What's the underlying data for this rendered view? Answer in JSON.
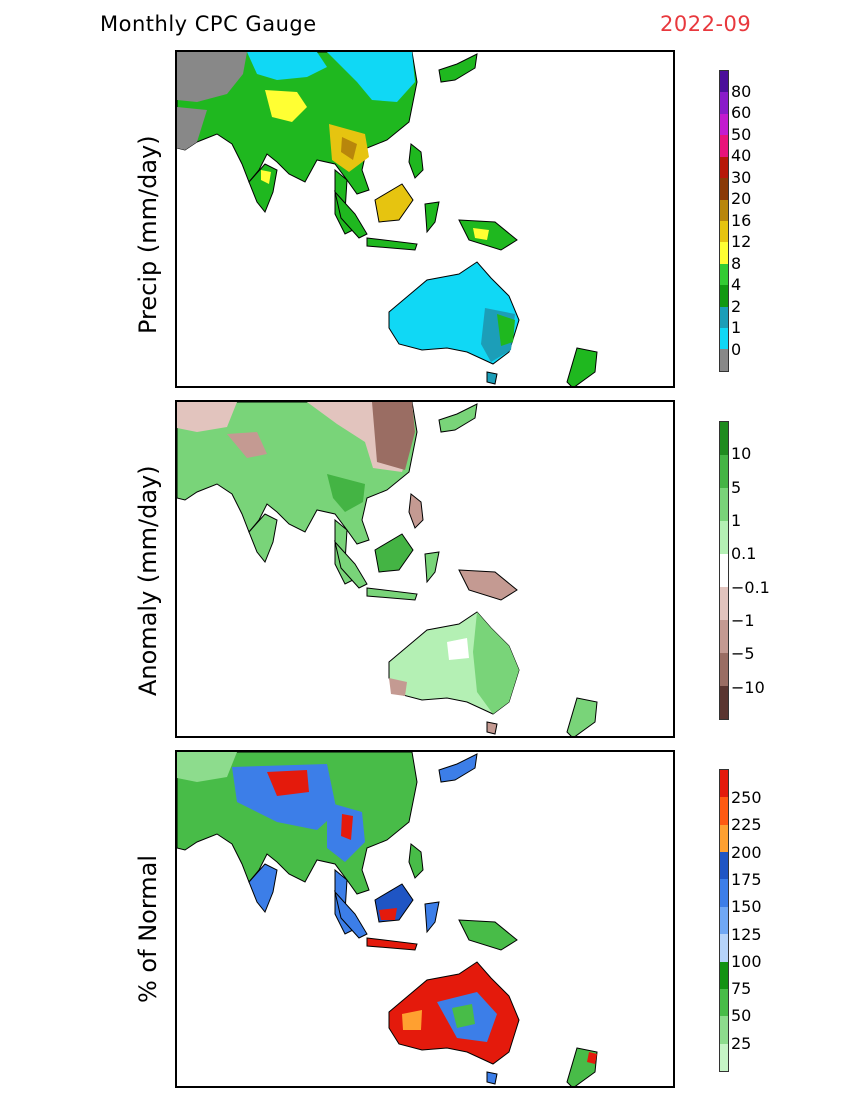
{
  "header": {
    "left": "Monthly CPC Gauge",
    "right": "2022-09"
  },
  "panels": [
    {
      "id": "precip",
      "ylabel": "Precip (mm/day)",
      "colorbar": {
        "labels": [
          "80",
          "60",
          "50",
          "40",
          "30",
          "20",
          "16",
          "12",
          "8",
          "4",
          "2",
          "1",
          "0"
        ],
        "colors": [
          "#4b0f9a",
          "#8a1cc9",
          "#c21ccf",
          "#e8137a",
          "#b71808",
          "#8a3a06",
          "#b8860b",
          "#e6c410",
          "#ffff33",
          "#33cc33",
          "#119911",
          "#1c9eb8",
          "#10d8f5",
          "#888888"
        ]
      }
    },
    {
      "id": "anomaly",
      "ylabel": "Anomaly (mm/day)",
      "colorbar": {
        "labels": [
          "10",
          "5",
          "1",
          "0.1",
          "−0.1",
          "−1",
          "−5",
          "−10"
        ],
        "colors": [
          "#1e8b1e",
          "#44b444",
          "#79d479",
          "#b4f0b4",
          "#ffffff",
          "#e2c4be",
          "#c49a92",
          "#9a6d63",
          "#5a3530"
        ]
      }
    },
    {
      "id": "percent",
      "ylabel": "% of Normal",
      "colorbar": {
        "labels": [
          "250",
          "225",
          "200",
          "175",
          "150",
          "125",
          "100",
          "75",
          "50",
          "25"
        ],
        "colors": [
          "#e41a0c",
          "#ff5a12",
          "#ffa030",
          "#1f55c4",
          "#3c7ee8",
          "#70a8f4",
          "#b6d4fa",
          "#129212",
          "#48bc48",
          "#8ddc8d",
          "#c5f4c5"
        ]
      }
    }
  ]
}
